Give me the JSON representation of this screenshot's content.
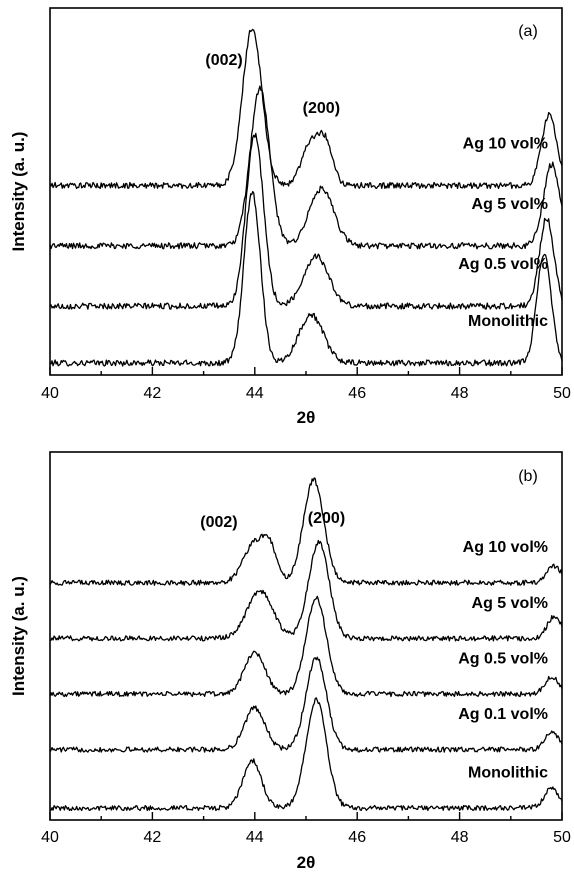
{
  "chart_data": [
    {
      "type": "line",
      "panel_label": "(a)",
      "xlabel": "2θ",
      "ylabel": "Intensity (a. u.)",
      "xlim": [
        40,
        50
      ],
      "x_ticks": [
        40,
        42,
        44,
        46,
        48,
        50
      ],
      "annotations": [
        {
          "text": "(002)",
          "x": 43.4,
          "y": 4.45
        },
        {
          "text": "(200)",
          "x": 45.3,
          "y": 3.73
        }
      ],
      "series": [
        {
          "name": "Monolithic",
          "offset": 0.0,
          "peaks": [
            [
              43.95,
              2.55,
              0.16
            ],
            [
              45.1,
              0.72,
              0.24
            ],
            [
              49.65,
              1.65,
              0.14
            ]
          ]
        },
        {
          "name": "Ag 0.5 vol%",
          "offset": 0.85,
          "peaks": [
            [
              44.0,
              2.55,
              0.17
            ],
            [
              45.2,
              0.75,
              0.24
            ],
            [
              49.7,
              1.32,
              0.14
            ]
          ]
        },
        {
          "name": "Ag 5 vol%",
          "offset": 1.75,
          "peaks": [
            [
              44.1,
              2.35,
              0.19
            ],
            [
              45.3,
              0.85,
              0.24
            ],
            [
              49.8,
              1.22,
              0.16
            ]
          ]
        },
        {
          "name": "Ag 10 vol%",
          "offset": 2.65,
          "peaks": [
            [
              43.95,
              2.35,
              0.19
            ],
            [
              45.1,
              0.65,
              0.18
            ],
            [
              45.4,
              0.55,
              0.14
            ],
            [
              49.75,
              1.05,
              0.15
            ]
          ]
        }
      ]
    },
    {
      "type": "line",
      "panel_label": "(b)",
      "xlabel": "2θ",
      "ylabel": "Intensity (a. u.)",
      "xlim": [
        40,
        50
      ],
      "x_ticks": [
        40,
        42,
        44,
        46,
        48,
        50
      ],
      "annotations": [
        {
          "text": "(002)",
          "x": 43.3,
          "y": 5.05
        },
        {
          "text": "(200)",
          "x": 45.4,
          "y": 5.12
        }
      ],
      "series": [
        {
          "name": "Monolithic",
          "offset": 0.0,
          "peaks": [
            [
              43.95,
              0.85,
              0.18
            ],
            [
              45.2,
              1.95,
              0.2
            ],
            [
              49.8,
              0.35,
              0.14
            ]
          ]
        },
        {
          "name": "Ag 0.1 vol%",
          "offset": 1.05,
          "peaks": [
            [
              44.0,
              0.75,
              0.2
            ],
            [
              45.2,
              1.65,
              0.2
            ],
            [
              49.8,
              0.3,
              0.14
            ]
          ]
        },
        {
          "name": "Ag 0.5 vol%",
          "offset": 2.05,
          "peaks": [
            [
              44.0,
              0.75,
              0.2
            ],
            [
              45.2,
              1.72,
              0.2
            ],
            [
              49.8,
              0.3,
              0.14
            ]
          ]
        },
        {
          "name": "Ag 5 vol%",
          "offset": 3.05,
          "peaks": [
            [
              44.1,
              0.85,
              0.25
            ],
            [
              45.25,
              1.72,
              0.2
            ],
            [
              49.85,
              0.4,
              0.14
            ]
          ]
        },
        {
          "name": "Ag 10 vol%",
          "offset": 4.05,
          "peaks": [
            [
              44.0,
              0.7,
              0.22
            ],
            [
              44.3,
              0.5,
              0.14
            ],
            [
              45.15,
              1.85,
              0.2
            ],
            [
              49.85,
              0.3,
              0.14
            ]
          ]
        }
      ]
    }
  ]
}
